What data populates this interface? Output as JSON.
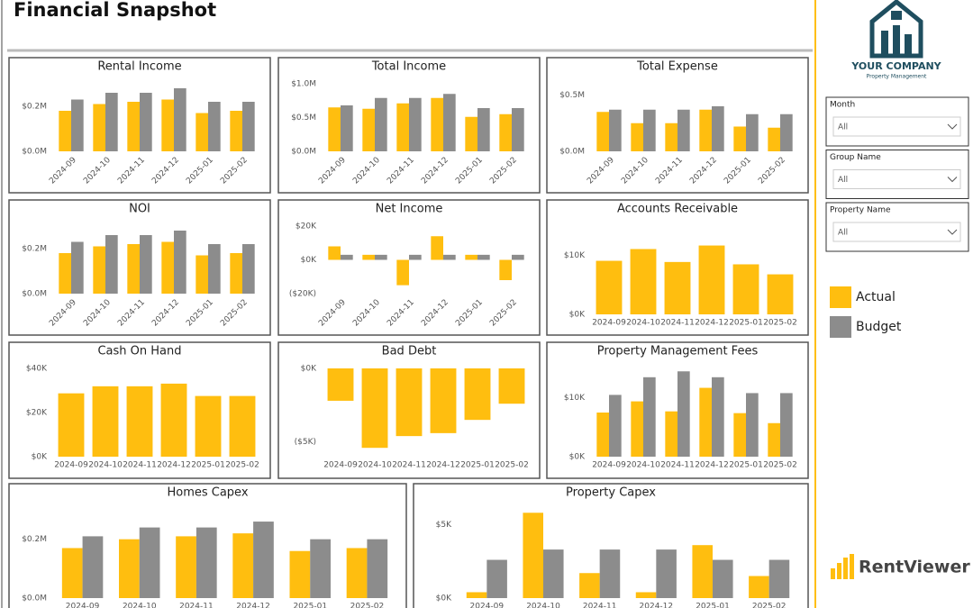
{
  "header": {
    "title": "Financial Snapshot"
  },
  "logo": {
    "company": "YOUR COMPANY",
    "tagline": "Property Management"
  },
  "filters": [
    {
      "label": "Month",
      "value": "All"
    },
    {
      "label": "Group Name",
      "value": "All"
    },
    {
      "label": "Property Name",
      "value": "All"
    }
  ],
  "brand": "RentViewer",
  "chart_data": [
    {
      "type": "bar",
      "title": "Rental Income",
      "categories": [
        "2024-09",
        "2024-10",
        "2024-11",
        "2024-12",
        "2025-01",
        "2025-02"
      ],
      "series": [
        {
          "name": "Actual",
          "color": "#FFBE0F",
          "values": [
            180000,
            210000,
            220000,
            230000,
            170000,
            180000
          ]
        },
        {
          "name": "Budget",
          "color": "#8C8C8C",
          "values": [
            230000,
            260000,
            260000,
            280000,
            220000,
            220000
          ]
        }
      ],
      "ylim": [
        0,
        300000
      ],
      "yticks": [
        {
          "value": 0,
          "label": "$0.0M"
        },
        {
          "value": 200000,
          "label": "$0.2M"
        }
      ]
    },
    {
      "type": "bar",
      "title": "Total Income",
      "categories": [
        "2024-09",
        "2024-10",
        "2024-11",
        "2024-12",
        "2025-01",
        "2025-02"
      ],
      "series": [
        {
          "name": "Actual",
          "color": "#FFBE0F",
          "values": [
            650000,
            630000,
            710000,
            790000,
            510000,
            550000
          ]
        },
        {
          "name": "Budget",
          "color": "#8C8C8C",
          "values": [
            680000,
            790000,
            790000,
            850000,
            640000,
            640000
          ]
        }
      ],
      "ylim": [
        0,
        1000000
      ],
      "yticks": [
        {
          "value": 0,
          "label": "$0.0M"
        },
        {
          "value": 500000,
          "label": "$0.5M"
        },
        {
          "value": 1000000,
          "label": "$1.0M"
        }
      ]
    },
    {
      "type": "bar",
      "title": "Total Expense",
      "categories": [
        "2024-09",
        "2024-10",
        "2024-11",
        "2024-12",
        "2025-01",
        "2025-02"
      ],
      "series": [
        {
          "name": "Actual",
          "color": "#FFBE0F",
          "values": [
            350000,
            250000,
            250000,
            370000,
            220000,
            210000
          ]
        },
        {
          "name": "Budget",
          "color": "#8C8C8C",
          "values": [
            370000,
            370000,
            370000,
            400000,
            330000,
            330000
          ]
        }
      ],
      "ylim": [
        0,
        600000
      ],
      "yticks": [
        {
          "value": 0,
          "label": "$0.0M"
        },
        {
          "value": 500000,
          "label": "$0.5M"
        }
      ]
    },
    {
      "type": "bar",
      "title": "NOI",
      "categories": [
        "2024-09",
        "2024-10",
        "2024-11",
        "2024-12",
        "2025-01",
        "2025-02"
      ],
      "series": [
        {
          "name": "Actual",
          "color": "#FFBE0F",
          "values": [
            180000,
            210000,
            220000,
            230000,
            170000,
            180000
          ]
        },
        {
          "name": "Budget",
          "color": "#8C8C8C",
          "values": [
            230000,
            260000,
            260000,
            280000,
            220000,
            220000
          ]
        }
      ],
      "ylim": [
        0,
        300000
      ],
      "yticks": [
        {
          "value": 0,
          "label": "$0.0M"
        },
        {
          "value": 200000,
          "label": "$0.2M"
        }
      ]
    },
    {
      "type": "bar",
      "title": "Net Income",
      "categories": [
        "2024-09",
        "2024-10",
        "2024-11",
        "2024-12",
        "2025-01",
        "2025-02"
      ],
      "series": [
        {
          "name": "Actual",
          "color": "#FFBE0F",
          "values": [
            8000,
            3000,
            -15000,
            14000,
            3000,
            -12000
          ]
        },
        {
          "name": "Budget",
          "color": "#8C8C8C",
          "values": [
            3000,
            3000,
            3000,
            3000,
            3000,
            3000
          ]
        }
      ],
      "ylim": [
        -20000,
        20000
      ],
      "yticks": [
        {
          "value": -20000,
          "label": "($20K)"
        },
        {
          "value": 0,
          "label": "$0K"
        },
        {
          "value": 20000,
          "label": "$20K"
        }
      ]
    },
    {
      "type": "bar",
      "title": "Accounts Receivable",
      "categories": [
        "2024-09",
        "2024-10",
        "2024-11",
        "2024-12",
        "2025-01",
        "2025-02"
      ],
      "values": [
        9100,
        11100,
        8900,
        11700,
        8500,
        6800
      ],
      "color": "#FFBE0F",
      "ylim": [
        0,
        15000
      ],
      "yticks": [
        {
          "value": 0,
          "label": "$0K"
        },
        {
          "value": 10000,
          "label": "$10K"
        }
      ]
    },
    {
      "type": "bar",
      "title": "Cash On Hand",
      "categories": [
        "2024-09",
        "2024-10",
        "2024-11",
        "2024-12",
        "2025-01",
        "2025-02"
      ],
      "values": [
        28700,
        31900,
        31900,
        33100,
        27500,
        27500
      ],
      "color": "#FFBE0F",
      "ylim": [
        0,
        40000
      ],
      "yticks": [
        {
          "value": 0,
          "label": "$0K"
        },
        {
          "value": 20000,
          "label": "$20K"
        },
        {
          "value": 40000,
          "label": "$40K"
        }
      ]
    },
    {
      "type": "bar",
      "title": "Bad Debt",
      "categories": [
        "2024-09",
        "2024-10",
        "2024-11",
        "2024-12",
        "2025-01",
        "2025-02"
      ],
      "values": [
        -2200,
        -5400,
        -4600,
        -4400,
        -3500,
        -2400
      ],
      "color": "#FFBE0F",
      "ylim": [
        -6000,
        0
      ],
      "yticks": [
        {
          "value": -5000,
          "label": "($5K)"
        },
        {
          "value": 0,
          "label": "$0K"
        }
      ]
    },
    {
      "type": "bar",
      "title": "Property Management Fees",
      "categories": [
        "2024-09",
        "2024-10",
        "2024-11",
        "2024-12",
        "2025-01",
        "2025-02"
      ],
      "series": [
        {
          "name": "Actual",
          "color": "#FFBE0F",
          "values": [
            7500,
            9400,
            7700,
            11700,
            7400,
            5700
          ]
        },
        {
          "name": "Budget",
          "color": "#8C8C8C",
          "values": [
            10500,
            13500,
            14500,
            13500,
            10800,
            10800
          ]
        }
      ],
      "ylim": [
        0,
        15000
      ],
      "yticks": [
        {
          "value": 0,
          "label": "$0K"
        },
        {
          "value": 10000,
          "label": "$10K"
        }
      ]
    },
    {
      "type": "bar",
      "title": "Homes Capex",
      "categories": [
        "2024-09",
        "2024-10",
        "2024-11",
        "2024-12",
        "2025-01",
        "2025-02"
      ],
      "series": [
        {
          "name": "Actual",
          "color": "#FFBE0F",
          "values": [
            170000,
            200000,
            210000,
            220000,
            160000,
            170000
          ]
        },
        {
          "name": "Budget",
          "color": "#8C8C8C",
          "values": [
            210000,
            240000,
            240000,
            260000,
            200000,
            200000
          ]
        }
      ],
      "ylim": [
        0,
        300000
      ],
      "yticks": [
        {
          "value": 0,
          "label": "$0.0M"
        },
        {
          "value": 200000,
          "label": "$0.2M"
        }
      ]
    },
    {
      "type": "bar",
      "title": "Property Capex",
      "categories": [
        "2024-09",
        "2024-10",
        "2024-11",
        "2024-12",
        "2025-01",
        "2025-02"
      ],
      "series": [
        {
          "name": "Actual",
          "color": "#FFBE0F",
          "values": [
            400,
            5800,
            1700,
            400,
            3600,
            1500
          ]
        },
        {
          "name": "Budget",
          "color": "#8C8C8C",
          "values": [
            2600,
            3300,
            3300,
            3300,
            2600,
            2600
          ]
        }
      ],
      "ylim": [
        0,
        6000
      ],
      "yticks": [
        {
          "value": 0,
          "label": "$0K"
        },
        {
          "value": 5000,
          "label": "$5K"
        }
      ]
    }
  ]
}
